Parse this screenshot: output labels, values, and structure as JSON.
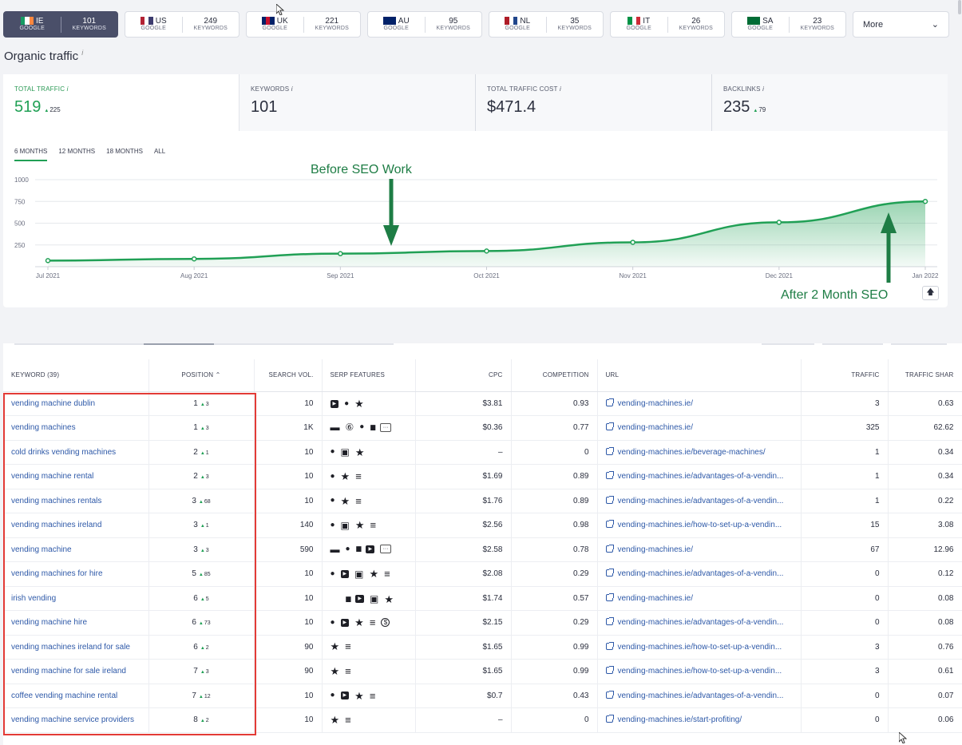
{
  "country_tabs": [
    {
      "code": "IE",
      "engine": "GOOGLE",
      "count": "101",
      "count_label": "KEYWORDS",
      "active": true,
      "flag": [
        "#169b62",
        "#ffffff",
        "#ff883e"
      ]
    },
    {
      "code": "US",
      "engine": "GOOGLE",
      "count": "249",
      "count_label": "KEYWORDS",
      "active": false,
      "flag": [
        "#b22234",
        "#ffffff",
        "#3c3b6e"
      ]
    },
    {
      "code": "UK",
      "engine": "GOOGLE",
      "count": "221",
      "count_label": "KEYWORDS",
      "active": false,
      "flag": [
        "#012169",
        "#c8102e",
        "#012169"
      ]
    },
    {
      "code": "AU",
      "engine": "GOOGLE",
      "count": "95",
      "count_label": "KEYWORDS",
      "active": false,
      "flag": [
        "#012169",
        "#012169",
        "#012169"
      ]
    },
    {
      "code": "NL",
      "engine": "GOOGLE",
      "count": "35",
      "count_label": "KEYWORDS",
      "active": false,
      "flag": [
        "#ae1c28",
        "#ffffff",
        "#21468b"
      ]
    },
    {
      "code": "IT",
      "engine": "GOOGLE",
      "count": "26",
      "count_label": "KEYWORDS",
      "active": false,
      "flag": [
        "#009246",
        "#ffffff",
        "#ce2b37"
      ]
    },
    {
      "code": "SA",
      "engine": "GOOGLE",
      "count": "23",
      "count_label": "KEYWORDS",
      "active": false,
      "flag": [
        "#006c35",
        "#006c35",
        "#006c35"
      ]
    }
  ],
  "more_label": "More",
  "page_title": "Organic traffic",
  "info_mark": "i",
  "metrics": [
    {
      "label": "TOTAL TRAFFIC",
      "value": "519",
      "delta": "225"
    },
    {
      "label": "KEYWORDS",
      "value": "101",
      "delta": ""
    },
    {
      "label": "TOTAL TRAFFIC COST",
      "value": "$471.4",
      "delta": ""
    },
    {
      "label": "BACKLINKS",
      "value": "235",
      "delta": "79"
    }
  ],
  "periods": [
    "6 MONTHS",
    "12 MONTHS",
    "18 MONTHS",
    "ALL"
  ],
  "active_period": 0,
  "chart_data": {
    "type": "area",
    "x": [
      "2021-07-01",
      "2021-08-01",
      "2021-09-01",
      "2021-10-01",
      "2021-11-01",
      "2021-12-01",
      "2022-01-01"
    ],
    "x_tick_labels": [
      "Jul 2021",
      "Aug 2021",
      "Sep 2021",
      "Oct 2021",
      "Nov 2021",
      "Dec 2021",
      "Jan 2022"
    ],
    "values": [
      70,
      90,
      150,
      180,
      280,
      510,
      750
    ],
    "ylim": [
      0,
      1000
    ],
    "y_ticks": [
      250,
      500,
      750,
      1000
    ],
    "grid": true,
    "color": "#20a055",
    "annotations": [
      "Before SEO Work",
      "After 2 Month SEO"
    ]
  },
  "table": {
    "headers": [
      "KEYWORD (39)",
      "POSITION",
      "SEARCH VOL.",
      "SERP FEATURES",
      "CPC",
      "COMPETITION",
      "URL",
      "TRAFFIC",
      "TRAFFIC SHAR"
    ],
    "rows": [
      {
        "kw": "vending machine dublin",
        "pos": "1",
        "pd": "3",
        "vol": "10",
        "feat": [
          "youtube",
          "pin",
          "star"
        ],
        "cpc": "$3.81",
        "comp": "0.93",
        "url": "vending-machines.ie/",
        "traffic": "3",
        "share": "0.63"
      },
      {
        "kw": "vending machines",
        "pos": "1",
        "pd": "3",
        "vol": "1K",
        "feat": [
          "pill",
          "six",
          "pin",
          "card",
          "more"
        ],
        "cpc": "$0.36",
        "comp": "0.77",
        "url": "vending-machines.ie/",
        "traffic": "325",
        "share": "62.62"
      },
      {
        "kw": "cold drinks vending machines",
        "pos": "2",
        "pd": "1",
        "vol": "10",
        "feat": [
          "pin",
          "image",
          "star"
        ],
        "cpc": "–",
        "comp": "0",
        "url": "vending-machines.ie/beverage-machines/",
        "traffic": "1",
        "share": "0.34"
      },
      {
        "kw": "vending machine rental",
        "pos": "2",
        "pd": "3",
        "vol": "10",
        "feat": [
          "pin",
          "star",
          "list"
        ],
        "cpc": "$1.69",
        "comp": "0.89",
        "url": "vending-machines.ie/advantages-of-a-vendin...",
        "traffic": "1",
        "share": "0.34"
      },
      {
        "kw": "vending machines rentals",
        "pos": "3",
        "pd": "68",
        "vol": "10",
        "feat": [
          "pin",
          "star",
          "list"
        ],
        "cpc": "$1.76",
        "comp": "0.89",
        "url": "vending-machines.ie/advantages-of-a-vendin...",
        "traffic": "1",
        "share": "0.22"
      },
      {
        "kw": "vending machines ireland",
        "pos": "3",
        "pd": "1",
        "vol": "140",
        "feat": [
          "pin",
          "image",
          "star",
          "list"
        ],
        "cpc": "$2.56",
        "comp": "0.98",
        "url": "vending-machines.ie/how-to-set-up-a-vendin...",
        "traffic": "15",
        "share": "3.08"
      },
      {
        "kw": "vending machine",
        "pos": "3",
        "pd": "3",
        "vol": "590",
        "feat": [
          "pill",
          "pin",
          "card",
          "youtube",
          "more"
        ],
        "cpc": "$2.58",
        "comp": "0.78",
        "url": "vending-machines.ie/",
        "traffic": "67",
        "share": "12.96"
      },
      {
        "kw": "vending machines for hire",
        "pos": "5",
        "pd": "85",
        "vol": "10",
        "feat": [
          "pin",
          "youtube",
          "image",
          "star",
          "list"
        ],
        "cpc": "$2.08",
        "comp": "0.29",
        "url": "vending-machines.ie/advantages-of-a-vendin...",
        "traffic": "0",
        "share": "0.12"
      },
      {
        "kw": "irish vending",
        "pos": "6",
        "pd": "5",
        "vol": "10",
        "feat": [
          "blank",
          "card",
          "youtube",
          "image",
          "star"
        ],
        "cpc": "$1.74",
        "comp": "0.57",
        "url": "vending-machines.ie/",
        "traffic": "0",
        "share": "0.08"
      },
      {
        "kw": "vending machine hire",
        "pos": "6",
        "pd": "73",
        "vol": "10",
        "feat": [
          "pin",
          "youtube",
          "star",
          "list",
          "dollar"
        ],
        "cpc": "$2.15",
        "comp": "0.29",
        "url": "vending-machines.ie/advantages-of-a-vendin...",
        "traffic": "0",
        "share": "0.08"
      },
      {
        "kw": "vending machines ireland for sale",
        "pos": "6",
        "pd": "2",
        "vol": "90",
        "feat": [
          "star",
          "list"
        ],
        "cpc": "$1.65",
        "comp": "0.99",
        "url": "vending-machines.ie/how-to-set-up-a-vendin...",
        "traffic": "3",
        "share": "0.76"
      },
      {
        "kw": "vending machine for sale ireland",
        "pos": "7",
        "pd": "3",
        "vol": "90",
        "feat": [
          "star",
          "list"
        ],
        "cpc": "$1.65",
        "comp": "0.99",
        "url": "vending-machines.ie/how-to-set-up-a-vendin...",
        "traffic": "3",
        "share": "0.61"
      },
      {
        "kw": "coffee vending machine rental",
        "pos": "7",
        "pd": "12",
        "vol": "10",
        "feat": [
          "pin",
          "youtube",
          "star",
          "list"
        ],
        "cpc": "$0.7",
        "comp": "0.43",
        "url": "vending-machines.ie/advantages-of-a-vendin...",
        "traffic": "0",
        "share": "0.07"
      },
      {
        "kw": "vending machine service providers",
        "pos": "8",
        "pd": "2",
        "vol": "10",
        "feat": [
          "star",
          "list"
        ],
        "cpc": "–",
        "comp": "0",
        "url": "vending-machines.ie/start-profiting/",
        "traffic": "0",
        "share": "0.06"
      }
    ]
  }
}
